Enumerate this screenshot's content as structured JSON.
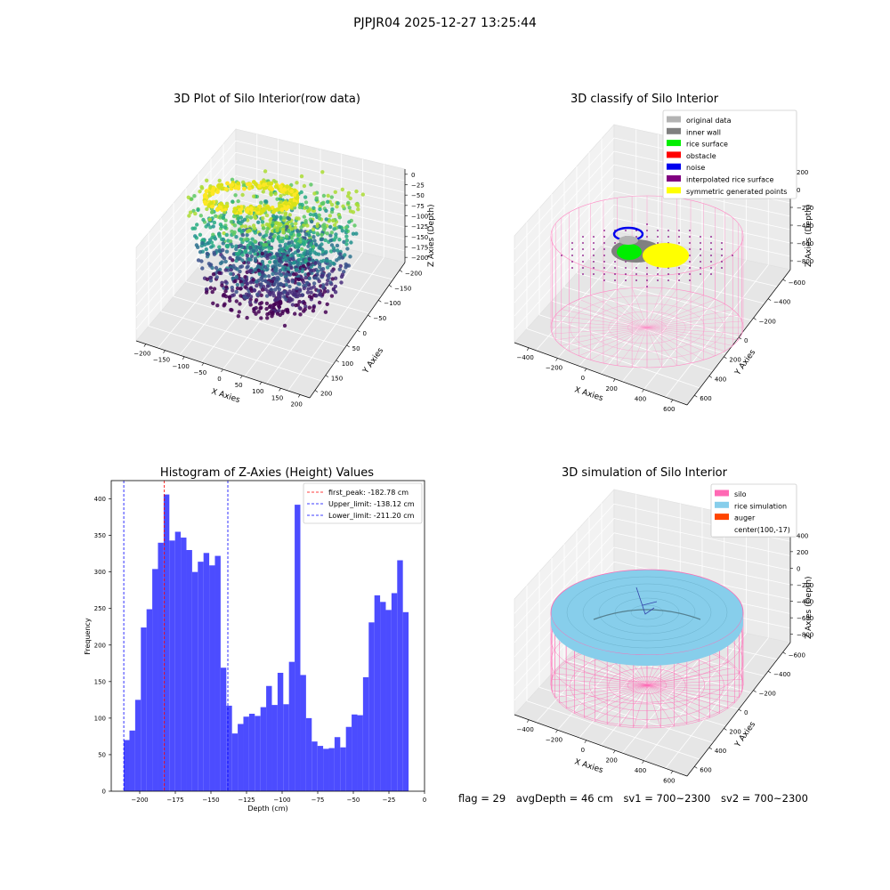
{
  "figure": {
    "suptitle": "PJPJR04 2025-12-27 13:25:44"
  },
  "panels": {
    "raw": {
      "title": "3D Plot of Silo Interior(row data)",
      "xlabel": "X Axies",
      "ylabel": "Y Axies",
      "zlabel": "Z Axies (Depth)",
      "xticks": [
        "−200",
        "−150",
        "−100",
        "−50",
        "0",
        "50",
        "100",
        "150",
        "200"
      ],
      "yticks": [
        "−200",
        "−150",
        "−100",
        "−50",
        "0",
        "50",
        "100",
        "150",
        "200"
      ],
      "zticks": [
        "0",
        "−25",
        "−50",
        "−75",
        "−100",
        "−125",
        "−150",
        "−175",
        "−200"
      ],
      "colormap": "viridis"
    },
    "classify": {
      "title": "3D classify of Silo Interior",
      "xlabel": "X Axies",
      "ylabel": "Y Axies",
      "zlabel": "Z Axies (Depth)",
      "xticks": [
        "−400",
        "−200",
        "0",
        "200",
        "400",
        "600"
      ],
      "yticks": [
        "−600",
        "−400",
        "−200",
        "0",
        "200",
        "400",
        "600"
      ],
      "zticks": [
        "200",
        "0",
        "−200",
        "−400",
        "−600",
        "−800"
      ],
      "legend": [
        {
          "label": "original data",
          "color": "#b3b3b3"
        },
        {
          "label": "inner wall",
          "color": "#808080"
        },
        {
          "label": "rice surface",
          "color": "#00ee00"
        },
        {
          "label": "obstacle",
          "color": "#ff0000"
        },
        {
          "label": "noise",
          "color": "#0000ee"
        },
        {
          "label": "interpolated rice surface",
          "color": "#800080"
        },
        {
          "label": "symmetric generated points",
          "color": "#ffff00"
        }
      ]
    },
    "simulation": {
      "title": "3D simulation of Silo Interior",
      "xlabel": "X Axies",
      "ylabel": "Y Axies",
      "zlabel": "Z Axies (Depth)",
      "xticks": [
        "−400",
        "−200",
        "0",
        "200",
        "400",
        "600"
      ],
      "yticks": [
        "−600",
        "−400",
        "−200",
        "0",
        "200",
        "400",
        "600"
      ],
      "zticks": [
        "400",
        "200",
        "0",
        "−200",
        "−400",
        "−600",
        "−800"
      ],
      "legend": [
        {
          "label": "silo",
          "color": "#ff69b4"
        },
        {
          "label": "rice simulation",
          "color": "#87ceeb"
        },
        {
          "label": "auger",
          "color": "#ff4500"
        },
        {
          "label": "center(100,-17)",
          "color": ""
        }
      ]
    }
  },
  "chart_data": [
    {
      "type": "bar",
      "title": "Histogram of Z-Axies (Height) Values",
      "xlabel": "Depth (cm)",
      "ylabel": "Frequency",
      "xlim": [
        -220,
        0
      ],
      "ylim": [
        0,
        425
      ],
      "xticks": [
        -200,
        -175,
        -150,
        -125,
        -100,
        -75,
        -50,
        -25,
        0
      ],
      "yticks": [
        0,
        50,
        100,
        150,
        200,
        250,
        300,
        350,
        400
      ],
      "bin_start": -211.2,
      "bin_width": 4.0,
      "bar_color": "#4c4cff",
      "values": [
        70,
        83,
        125,
        224,
        249,
        304,
        340,
        406,
        343,
        355,
        347,
        330,
        300,
        314,
        326,
        309,
        322,
        169,
        117,
        79,
        92,
        102,
        106,
        103,
        115,
        144,
        118,
        162,
        119,
        177,
        392,
        159,
        100,
        68,
        62,
        58,
        59,
        74,
        60,
        88,
        105,
        104,
        156,
        231,
        268,
        259,
        248,
        271,
        316,
        245
      ],
      "vlines": [
        {
          "label": "first_peak: -182.78 cm",
          "x": -182.78,
          "color": "#ff0000"
        },
        {
          "label": "Upper_limit: -138.12 cm",
          "x": -138.12,
          "color": "#0000ff"
        },
        {
          "label": "Lower_limit: -211.20 cm",
          "x": -211.2,
          "color": "#0000ff"
        }
      ],
      "legend_position": "top-right",
      "grid": false
    }
  ],
  "status": {
    "flag": "flag = 29",
    "avg_depth": "avgDepth = 46 cm",
    "sv1": "sv1 = 700~2300",
    "sv2": "sv2 = 700~2300"
  }
}
